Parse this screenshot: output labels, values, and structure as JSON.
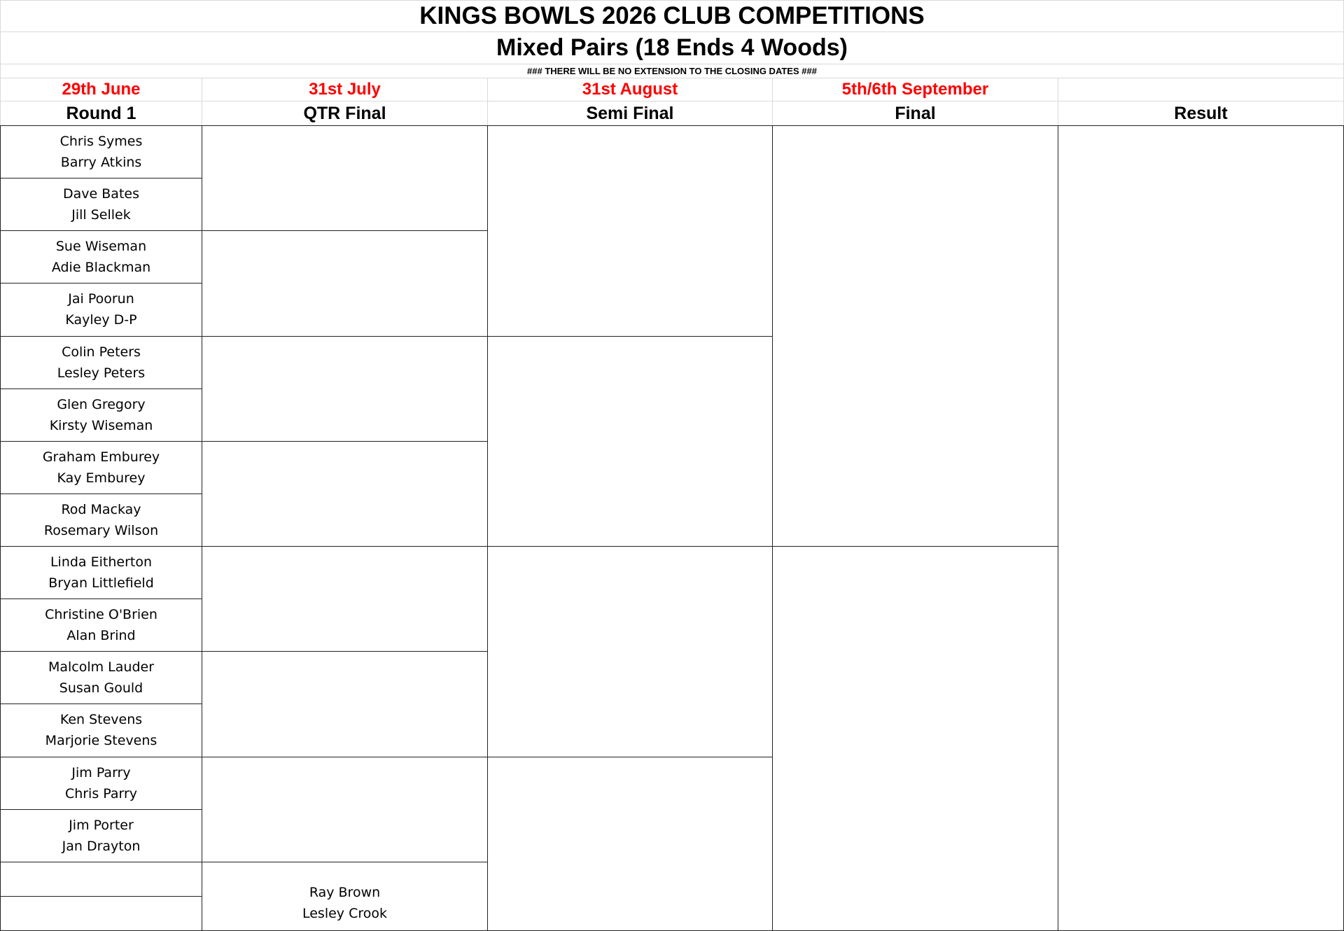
{
  "header": {
    "title": "KINGS BOWLS 2026 CLUB COMPETITIONS",
    "subtitle": "Mixed Pairs (18 Ends 4 Woods)",
    "note": "###  THERE WILL BE NO EXTENSION TO THE CLOSING DATES  ###"
  },
  "rounds": [
    {
      "date": "29th June",
      "name": "Round 1"
    },
    {
      "date": "31st July",
      "name": "QTR Final"
    },
    {
      "date": "31st August",
      "name": "Semi Final"
    },
    {
      "date": "5th/6th September",
      "name": "Final"
    },
    {
      "name": "Result"
    }
  ],
  "round1": [
    [
      "Chris Symes",
      "Barry Atkins"
    ],
    [
      "Dave Bates",
      "Jill Sellek"
    ],
    [
      "Sue Wiseman",
      "Adie Blackman"
    ],
    [
      "Jai Poorun",
      "Kayley D-P"
    ],
    [
      "Colin Peters",
      "Lesley Peters"
    ],
    [
      "Glen Gregory",
      "Kirsty Wiseman"
    ],
    [
      "Graham Emburey",
      "Kay Emburey"
    ],
    [
      "Rod Mackay",
      "Rosemary Wilson"
    ],
    [
      "Linda Eitherton",
      "Bryan Littlefield"
    ],
    [
      "Christine O'Brien",
      "Alan Brind"
    ],
    [
      "Malcolm Lauder",
      "Susan Gould"
    ],
    [
      "Ken Stevens",
      "Marjorie Stevens"
    ],
    [
      "Jim Parry",
      "Chris Parry"
    ],
    [
      "Jim Porter",
      "Jan Drayton"
    ]
  ],
  "qtr_bye": [
    "Ray Brown",
    "Lesley Crook"
  ]
}
